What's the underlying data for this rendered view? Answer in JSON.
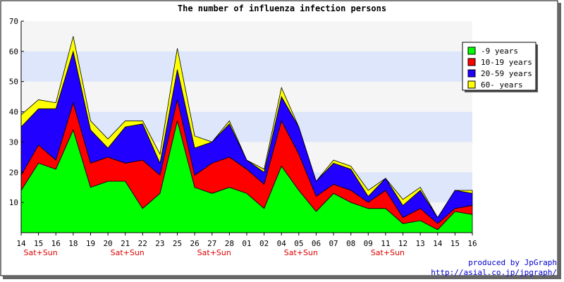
{
  "chart_data": {
    "type": "area",
    "stacked": true,
    "title": "The number of influenza infection persons",
    "xlabel": "",
    "ylabel": "",
    "ylim": [
      0,
      70
    ],
    "yticks": [
      10,
      20,
      30,
      40,
      50,
      60,
      70
    ],
    "categories": [
      "14",
      "15",
      "16",
      "18",
      "19",
      "20",
      "21",
      "22",
      "23",
      "25",
      "26",
      "27",
      "28",
      "01",
      "02",
      "04",
      "05",
      "06",
      "07",
      "08",
      "09",
      "11",
      "12",
      "13",
      "14",
      "15",
      "16"
    ],
    "weekend_label": "Sat+Sun",
    "weekend_indices": [
      1,
      6,
      11,
      16,
      21
    ],
    "series": [
      {
        "name": "-9 years",
        "color": "#00ff00",
        "values": [
          14,
          23,
          21,
          34,
          15,
          17,
          17,
          8,
          13,
          37,
          15,
          13,
          15,
          13,
          8,
          22,
          14,
          7,
          13,
          10,
          8,
          8,
          3,
          4,
          1,
          7,
          6
        ]
      },
      {
        "name": "10-19 years",
        "color": "#ff0000",
        "values": [
          5,
          6,
          3,
          9,
          8,
          8,
          6,
          16,
          6,
          7,
          4,
          10,
          10,
          8,
          8,
          15,
          12,
          5,
          3,
          4,
          2,
          6,
          2,
          4,
          2,
          1,
          3
        ]
      },
      {
        "name": "20-59 years",
        "color": "#2200ff",
        "values": [
          16,
          12,
          17,
          17,
          11,
          3,
          12,
          12,
          4,
          10,
          9,
          7,
          11,
          3,
          4,
          8,
          9,
          5,
          7,
          7,
          2,
          4,
          4,
          6,
          2,
          6,
          4
        ]
      },
      {
        "name": "60- years",
        "color": "#ffff00",
        "values": [
          4,
          3,
          2,
          5,
          3,
          3,
          2,
          1,
          3,
          7,
          4,
          0,
          1,
          0,
          1,
          3,
          0,
          0,
          1,
          1,
          2,
          0,
          2,
          1,
          0,
          0,
          1
        ]
      }
    ],
    "grid": true,
    "legend_position": "top-right"
  },
  "credit": {
    "line1": "produced by JpGraph",
    "line2": "http://asial.co.jp/jpgraph/"
  }
}
